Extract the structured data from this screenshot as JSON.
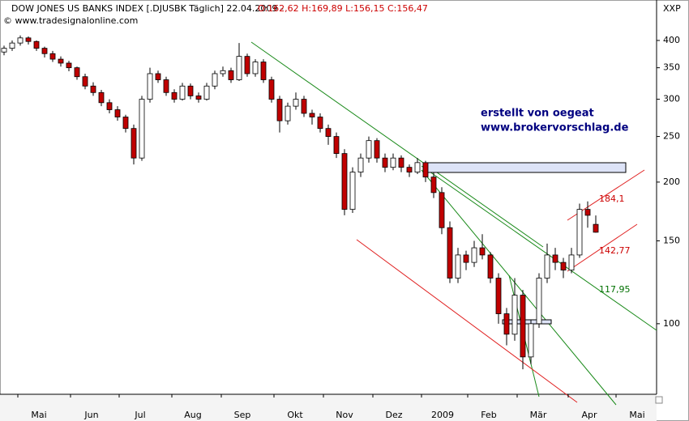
{
  "chart_data": {
    "type": "candlestick",
    "title": "DOW JONES US BANKS INDEX [.DJUSBK  Täglich] 22.04.2009 -",
    "subtitle": "O:162,62 H:169,89 L:156,15 C:156,47",
    "source": "© www.tradesignalonline.com",
    "corner_label": "XXP",
    "notes": [
      "erstellt von oegeat",
      "www.brokervorschlag.de"
    ],
    "log_scale": true,
    "up_color": "#ffffff",
    "down_color": "#c00000",
    "xlim": [
      -0.5,
      80.5
    ],
    "xticks": [
      {
        "value": 4.3,
        "label": "Mai"
      },
      {
        "value": 10.8,
        "label": "Jun"
      },
      {
        "value": 16.8,
        "label": "Jul"
      },
      {
        "value": 23.3,
        "label": "Aug"
      },
      {
        "value": 29.4,
        "label": "Sep"
      },
      {
        "value": 35.9,
        "label": "Okt"
      },
      {
        "value": 42,
        "label": "Nov"
      },
      {
        "value": 48.1,
        "label": "Dez"
      },
      {
        "value": 54.1,
        "label": "2009"
      },
      {
        "value": 59.8,
        "label": "Feb"
      },
      {
        "value": 65.9,
        "label": "Mär"
      },
      {
        "value": 72.2,
        "label": "Apr"
      },
      {
        "value": 78.1,
        "label": "Mai"
      }
    ],
    "ylim": [
      70.8,
      478
    ],
    "yticks": [
      100,
      150,
      200,
      250,
      300,
      350,
      400
    ],
    "levels": [
      {
        "value": 184.1,
        "label": "184,1",
        "color": "#cc0000"
      },
      {
        "value": 142.77,
        "label": "142,77",
        "color": "#cc0000"
      },
      {
        "value": 117.95,
        "label": "117,95",
        "color": "#007000"
      }
    ],
    "open": [
      378,
      385,
      395,
      405,
      398,
      385,
      375,
      365,
      358,
      350,
      335,
      320,
      310,
      295,
      285,
      275,
      260,
      225,
      300,
      340,
      330,
      310,
      300,
      320,
      305,
      300,
      320,
      340,
      345,
      330,
      370,
      340,
      360,
      330,
      300,
      270,
      290,
      300,
      280,
      275,
      260,
      250,
      230,
      175,
      210,
      225,
      245,
      225,
      215,
      225,
      215,
      210,
      220,
      205,
      190,
      160,
      125,
      140,
      135,
      145,
      140,
      125,
      105,
      95,
      115,
      85,
      100,
      125,
      140,
      135,
      130,
      140,
      175,
      162.62
    ],
    "high": [
      390,
      400,
      410,
      408,
      400,
      388,
      380,
      370,
      362,
      352,
      340,
      326,
      314,
      300,
      290,
      278,
      265,
      305,
      350,
      345,
      335,
      315,
      325,
      324,
      310,
      325,
      345,
      352,
      350,
      395,
      375,
      365,
      365,
      335,
      305,
      295,
      310,
      305,
      285,
      280,
      265,
      255,
      235,
      215,
      230,
      250,
      248,
      230,
      230,
      228,
      218,
      225,
      222,
      210,
      195,
      165,
      145,
      143,
      150,
      155,
      142,
      128,
      108,
      125,
      118,
      102,
      128,
      148,
      145,
      138,
      145,
      180,
      182,
      169.89
    ],
    "low": [
      372,
      380,
      390,
      392,
      380,
      368,
      360,
      352,
      344,
      330,
      315,
      305,
      290,
      280,
      270,
      255,
      218,
      222,
      295,
      325,
      305,
      295,
      298,
      300,
      295,
      298,
      315,
      335,
      325,
      328,
      335,
      335,
      325,
      295,
      255,
      265,
      285,
      275,
      265,
      255,
      240,
      225,
      170,
      172,
      205,
      220,
      220,
      210,
      212,
      210,
      205,
      208,
      200,
      185,
      155,
      122,
      122,
      130,
      132,
      137,
      122,
      100,
      90,
      92,
      80,
      82,
      98,
      122,
      130,
      125,
      128,
      138,
      160,
      156.15
    ],
    "close": [
      385,
      395,
      405,
      398,
      385,
      375,
      365,
      358,
      350,
      335,
      320,
      310,
      295,
      285,
      275,
      260,
      225,
      300,
      340,
      330,
      310,
      300,
      320,
      305,
      300,
      320,
      340,
      345,
      330,
      370,
      340,
      360,
      330,
      300,
      270,
      290,
      300,
      280,
      275,
      260,
      250,
      230,
      175,
      210,
      225,
      245,
      225,
      215,
      225,
      215,
      210,
      220,
      205,
      190,
      160,
      125,
      140,
      135,
      145,
      140,
      125,
      105,
      95,
      115,
      85,
      100,
      125,
      140,
      135,
      130,
      140,
      175,
      170,
      156.47
    ]
  }
}
